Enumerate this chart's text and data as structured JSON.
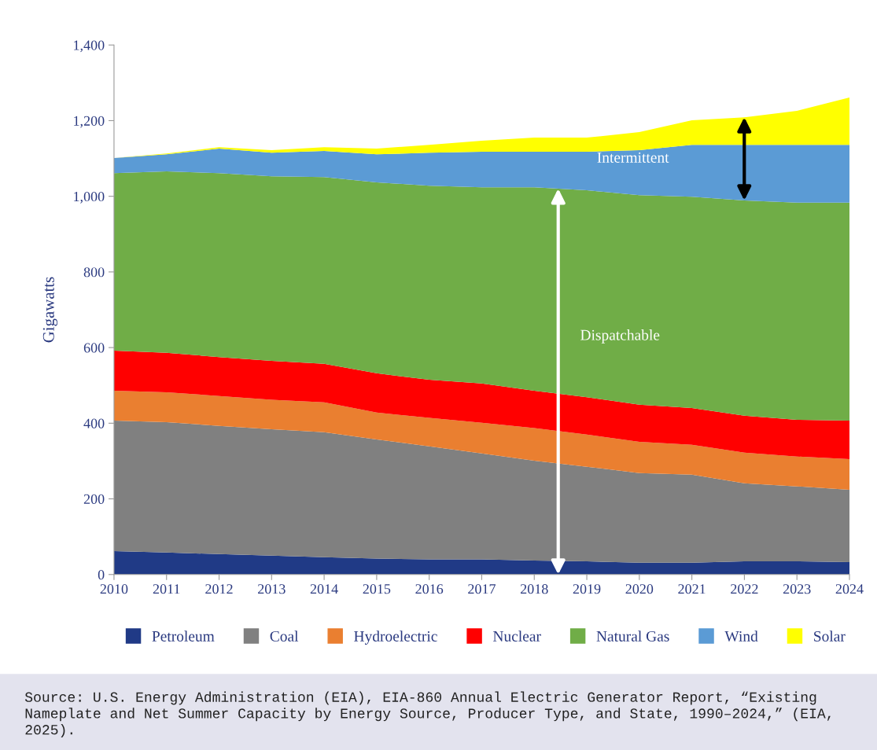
{
  "chart_data": {
    "type": "area",
    "stacked": true,
    "ylabel": "Gigawatts",
    "x": [
      2010,
      2011,
      2012,
      2013,
      2014,
      2015,
      2016,
      2017,
      2018,
      2019,
      2020,
      2021,
      2022,
      2023,
      2024
    ],
    "series": [
      {
        "name": "Petroleum",
        "color": "#203a86",
        "values": [
          62,
          58,
          54,
          50,
          46,
          42,
          40,
          40,
          37,
          35,
          31,
          31,
          35,
          35,
          33
        ]
      },
      {
        "name": "Coal",
        "color": "#808080",
        "values": [
          345,
          345,
          339,
          334,
          330,
          315,
          299,
          280,
          264,
          250,
          237,
          233,
          206,
          198,
          191
        ]
      },
      {
        "name": "Hydroelectric",
        "color": "#ea7f30",
        "values": [
          79,
          79,
          79,
          78,
          79,
          71,
          75,
          81,
          86,
          85,
          83,
          79,
          81,
          79,
          81
        ]
      },
      {
        "name": "Nuclear",
        "color": "#ff0000",
        "values": [
          106,
          104,
          103,
          103,
          102,
          104,
          101,
          104,
          99,
          99,
          98,
          97,
          98,
          97,
          102
        ]
      },
      {
        "name": "Natural Gas",
        "color": "#70ad47",
        "values": [
          469,
          480,
          486,
          488,
          494,
          505,
          513,
          519,
          538,
          547,
          554,
          559,
          569,
          574,
          576
        ]
      },
      {
        "name": "Wind",
        "color": "#5b9bd5",
        "values": [
          40,
          45,
          65,
          62,
          69,
          74,
          87,
          94,
          94,
          102,
          119,
          137,
          147,
          153,
          153
        ]
      },
      {
        "name": "Solar",
        "color": "#ffff00",
        "values": [
          0,
          2,
          4,
          7,
          10,
          15,
          21,
          29,
          37,
          37,
          48,
          65,
          73,
          90,
          125
        ]
      }
    ],
    "xlim": [
      2010,
      2024
    ],
    "xticks": [
      2010,
      2011,
      2012,
      2013,
      2014,
      2015,
      2016,
      2017,
      2018,
      2019,
      2020,
      2021,
      2022,
      2023,
      2024
    ],
    "ylim": [
      0,
      1400
    ],
    "yticks": [
      0,
      200,
      400,
      600,
      800,
      {
        "value": 1000,
        "label": "1,000"
      },
      {
        "value": 1200,
        "label": "1,200"
      },
      {
        "value": 1400,
        "label": "1,400"
      }
    ],
    "grid": false,
    "legend": "bottom",
    "annotations": [
      "Dispatchable",
      "Intermittent",
      "Source: U.S. Energy Administration (EIA), EIA-860 Annual Electric Generator Report, “Existing Nameplate and Net Summer Capacity by Energy Source, Producer Type, and State, 1990–2024,” (EIA, 2025)."
    ]
  }
}
